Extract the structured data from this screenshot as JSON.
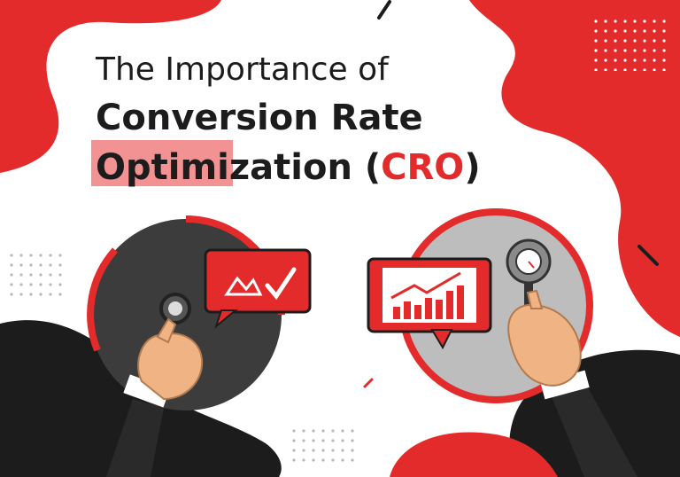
{
  "title": {
    "line1": "The Importance of",
    "line2": "Conversion Rate",
    "line3": {
      "before": "Optimization (",
      "highlight": "CRO",
      "after": ")"
    }
  }
}
